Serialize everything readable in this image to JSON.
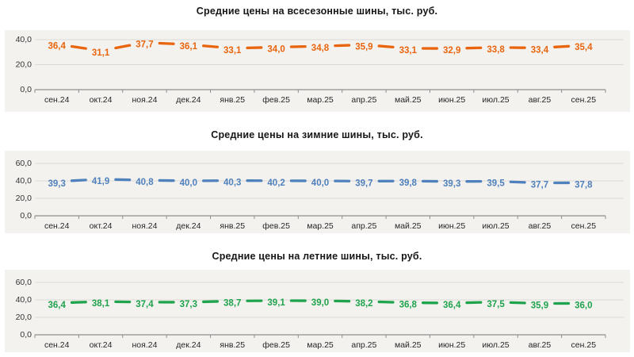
{
  "colors": {
    "plot_background": "#f4f2ef",
    "gridline": "#dbd9d6",
    "axis": "#8f8f8f",
    "tick_label": "#333333",
    "category_label": "#262626",
    "allseason_line": "#e8650e",
    "winter_line": "#4f81bd",
    "summer_line": "#1fa34d"
  },
  "chart_data": [
    {
      "type": "line",
      "title": "Средние цены на всесезонные шины, тыс. руб.",
      "line_style": "dashed",
      "legend": "none",
      "grid": true,
      "color": "#e8650e",
      "categories": [
        "сен.24",
        "окт.24",
        "ноя.24",
        "дек.24",
        "янв.25",
        "фев.25",
        "мар.25",
        "апр.25",
        "май.25",
        "июн.25",
        "июл.25",
        "авг.25",
        "сен.25"
      ],
      "values": [
        36.4,
        31.1,
        37.7,
        36.1,
        33.1,
        34.0,
        34.8,
        35.9,
        33.1,
        32.9,
        33.8,
        33.4,
        35.4
      ],
      "yticks": [
        0,
        20,
        40
      ],
      "ylim": [
        0,
        45
      ],
      "xlabel": "",
      "ylabel": ""
    },
    {
      "type": "line",
      "title": "Средние цены на зимние шины, тыс. руб.",
      "line_style": "dashed",
      "legend": "none",
      "grid": true,
      "color": "#4f81bd",
      "categories": [
        "сен.24",
        "окт.24",
        "ноя.24",
        "дек.24",
        "янв.25",
        "фев.25",
        "мар.25",
        "апр.25",
        "май.25",
        "июн.25",
        "июл.25",
        "авг.25",
        "сен.25"
      ],
      "values": [
        39.3,
        41.9,
        40.8,
        40.0,
        40.3,
        40.2,
        40.0,
        39.7,
        39.8,
        39.3,
        39.5,
        37.7,
        37.8
      ],
      "yticks": [
        0,
        20,
        40,
        60
      ],
      "ylim": [
        0,
        66
      ],
      "xlabel": "",
      "ylabel": ""
    },
    {
      "type": "line",
      "title": "Средние цены на летние шины, тыс. руб.",
      "line_style": "dashed",
      "legend": "none",
      "grid": true,
      "color": "#1fa34d",
      "categories": [
        "сен.24",
        "окт.24",
        "ноя.24",
        "дек.24",
        "янв.25",
        "фев.25",
        "мар.25",
        "апр.25",
        "май.25",
        "июн.25",
        "июл.25",
        "авг.25",
        "сен.25"
      ],
      "values": [
        36.4,
        38.1,
        37.4,
        37.3,
        38.7,
        39.1,
        39.0,
        38.2,
        36.8,
        36.4,
        37.5,
        35.9,
        36.0
      ],
      "yticks": [
        0,
        20,
        40,
        60
      ],
      "ylim": [
        0,
        66
      ],
      "xlabel": "",
      "ylabel": ""
    }
  ]
}
